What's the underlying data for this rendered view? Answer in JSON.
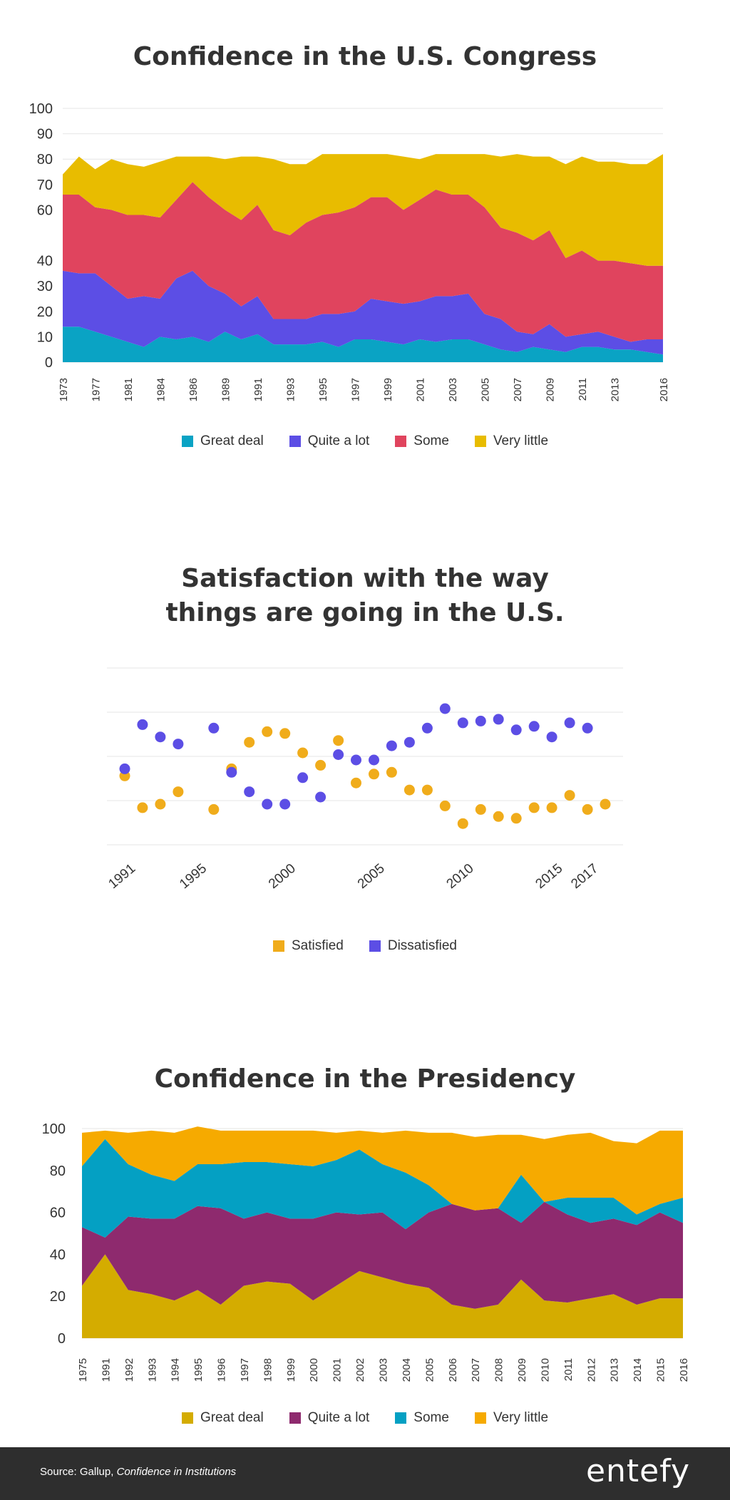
{
  "chart_data": [
    {
      "type": "area",
      "title": "Confidence in the U.S. Congress",
      "ylim": [
        0,
        100
      ],
      "yticks": [
        0,
        10,
        20,
        30,
        40,
        60,
        70,
        80,
        90,
        100
      ],
      "x": [
        "1973",
        "1975",
        "1977",
        "1979",
        "1981",
        "1983",
        "1984",
        "1985",
        "1986",
        "1987",
        "1989",
        "1990",
        "1991",
        "1992",
        "1993",
        "1994",
        "1995",
        "1996",
        "1997",
        "1998",
        "1999",
        "2000",
        "2001",
        "2002",
        "2003",
        "2004",
        "2005",
        "2006",
        "2007",
        "2008",
        "2009",
        "2010",
        "2011",
        "2012",
        "2013",
        "2014",
        "2015",
        "2016"
      ],
      "xticks": [
        "1973",
        "1977",
        "1981",
        "1984",
        "1986",
        "1989",
        "1991",
        "1993",
        "1995",
        "1997",
        "1999",
        "2001",
        "2003",
        "2005",
        "2007",
        "2009",
        "2011",
        "2013",
        "2016"
      ],
      "series": [
        {
          "name": "Great deal",
          "color": "#0aa3c4",
          "values": [
            14,
            14,
            12,
            10,
            8,
            6,
            10,
            9,
            10,
            8,
            12,
            9,
            11,
            7,
            7,
            7,
            8,
            6,
            9,
            9,
            8,
            7,
            9,
            8,
            9,
            9,
            7,
            5,
            4,
            6,
            5,
            4,
            6,
            6,
            5,
            5,
            4,
            3
          ]
        },
        {
          "name": "Quite a lot",
          "color": "#5c4ee5",
          "values": [
            22,
            21,
            23,
            20,
            17,
            20,
            15,
            24,
            26,
            22,
            15,
            13,
            15,
            10,
            10,
            10,
            11,
            13,
            11,
            16,
            16,
            16,
            15,
            18,
            17,
            18,
            12,
            12,
            8,
            5,
            10,
            6,
            5,
            6,
            5,
            3,
            5,
            6
          ]
        },
        {
          "name": "Some",
          "color": "#e0445e",
          "values": [
            30,
            31,
            26,
            30,
            33,
            32,
            32,
            31,
            35,
            35,
            33,
            34,
            36,
            35,
            33,
            38,
            39,
            40,
            41,
            40,
            41,
            37,
            40,
            42,
            40,
            39,
            42,
            36,
            39,
            37,
            37,
            31,
            33,
            28,
            30,
            31,
            29,
            29
          ]
        },
        {
          "name": "Very little",
          "color": "#e8bc00",
          "values": [
            8,
            15,
            15,
            20,
            20,
            19,
            22,
            17,
            10,
            16,
            20,
            25,
            19,
            28,
            28,
            23,
            24,
            23,
            21,
            17,
            17,
            21,
            16,
            14,
            16,
            16,
            21,
            28,
            31,
            33,
            29,
            37,
            37,
            39,
            39,
            39,
            40,
            44
          ]
        }
      ]
    },
    {
      "type": "scatter",
      "title": "Satisfaction with the way\nthings are going in the U.S.",
      "xlim": [
        1990,
        2019
      ],
      "ylim": [
        0,
        100
      ],
      "xticks": [
        "1991",
        "1995",
        "2000",
        "2005",
        "2010",
        "2015",
        "2017"
      ],
      "series": [
        {
          "name": "Satisfied",
          "color": "#f0ac1b",
          "points": [
            [
              1991,
              39
            ],
            [
              1992,
              21
            ],
            [
              1993,
              23
            ],
            [
              1994,
              30
            ],
            [
              1996,
              20
            ],
            [
              1997,
              43
            ],
            [
              1998,
              58
            ],
            [
              1999,
              64
            ],
            [
              2000,
              63
            ],
            [
              2001,
              52
            ],
            [
              2002,
              45
            ],
            [
              2003,
              59
            ],
            [
              2004,
              35
            ],
            [
              2005,
              40
            ],
            [
              2006,
              41
            ],
            [
              2007,
              31
            ],
            [
              2008,
              31
            ],
            [
              2009,
              22
            ],
            [
              2010,
              12
            ],
            [
              2011,
              20
            ],
            [
              2012,
              16
            ],
            [
              2013,
              15
            ],
            [
              2014,
              21
            ],
            [
              2015,
              21
            ],
            [
              2016,
              28
            ],
            [
              2017,
              20
            ],
            [
              2018,
              23
            ]
          ]
        },
        {
          "name": "Dissatisfied",
          "color": "#5c4ee5",
          "points": [
            [
              1991,
              43
            ],
            [
              1992,
              68
            ],
            [
              1993,
              61
            ],
            [
              1994,
              57
            ],
            [
              1996,
              66
            ],
            [
              1997,
              41
            ],
            [
              1998,
              30
            ],
            [
              1999,
              23
            ],
            [
              2000,
              23
            ],
            [
              2001,
              38
            ],
            [
              2002,
              27
            ],
            [
              2003,
              51
            ],
            [
              2004,
              48
            ],
            [
              2005,
              48
            ],
            [
              2006,
              56
            ],
            [
              2007,
              58
            ],
            [
              2008,
              66
            ],
            [
              2009,
              77
            ],
            [
              2010,
              69
            ],
            [
              2011,
              70
            ],
            [
              2012,
              71
            ],
            [
              2013,
              65
            ],
            [
              2014,
              67
            ],
            [
              2015,
              61
            ],
            [
              2016,
              69
            ],
            [
              2017,
              66
            ]
          ]
        }
      ]
    },
    {
      "type": "area",
      "title": "Confidence in the Presidency",
      "ylim": [
        0,
        100
      ],
      "yticks": [
        0,
        20,
        40,
        60,
        80,
        100
      ],
      "x": [
        "1975",
        "1991",
        "1992",
        "1993",
        "1994",
        "1995",
        "1996",
        "1997",
        "1998",
        "1999",
        "2000",
        "2001",
        "2002",
        "2003",
        "2004",
        "2005",
        "2006",
        "2007",
        "2008",
        "2009",
        "2010",
        "2011",
        "2012",
        "2013",
        "2014",
        "2015",
        "2016"
      ],
      "series": [
        {
          "name": "Great deal",
          "color": "#d4ac00",
          "values": [
            25,
            40,
            23,
            21,
            18,
            23,
            16,
            25,
            27,
            26,
            18,
            25,
            32,
            29,
            26,
            24,
            16,
            14,
            16,
            28,
            18,
            17,
            19,
            21,
            16,
            19,
            19
          ]
        },
        {
          "name": "Quite a lot",
          "color": "#8e2a6e",
          "values": [
            28,
            8,
            35,
            36,
            39,
            40,
            46,
            32,
            33,
            31,
            39,
            35,
            27,
            31,
            26,
            36,
            48,
            47,
            46,
            27,
            47,
            42,
            36,
            36,
            38,
            41,
            36
          ]
        },
        {
          "name": "Some",
          "color": "#04a0c3",
          "values": [
            29,
            47,
            25,
            21,
            18,
            20,
            21,
            27,
            24,
            26,
            25,
            25,
            31,
            23,
            27,
            13,
            0,
            0,
            0,
            23,
            0,
            8,
            12,
            10,
            5,
            4,
            12
          ]
        },
        {
          "name": "Very little",
          "color": "#f6aa00",
          "values": [
            16,
            4,
            15,
            21,
            23,
            18,
            16,
            15,
            15,
            16,
            17,
            13,
            9,
            15,
            20,
            25,
            34,
            35,
            35,
            19,
            30,
            30,
            31,
            27,
            34,
            35,
            32
          ]
        }
      ]
    }
  ],
  "footer": {
    "source_prefix": "Source: Gallup, ",
    "source_title": "Confidence in Institutions",
    "brand": "entefy"
  }
}
